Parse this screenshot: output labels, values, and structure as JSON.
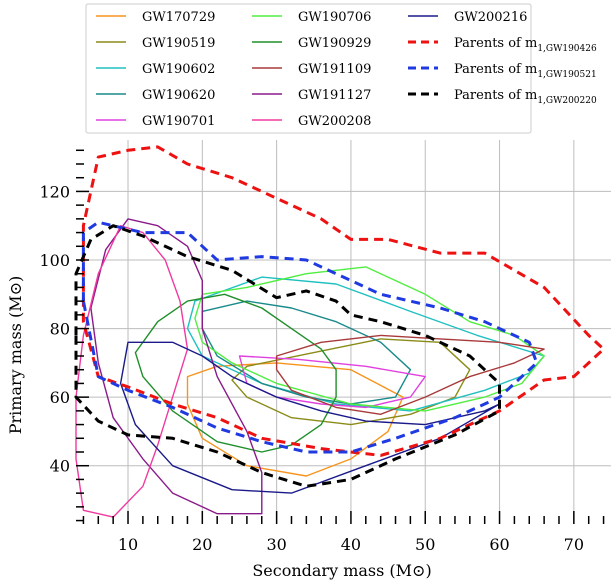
{
  "chart_data": {
    "type": "contour",
    "title": "",
    "xlabel": "Secondary mass (M⊙)",
    "ylabel": "Primary mass (M⊙)",
    "xlim": [
      3,
      75
    ],
    "ylim": [
      23,
      135
    ],
    "xticks": [
      10,
      20,
      30,
      40,
      50,
      60,
      70
    ],
    "yticks": [
      40,
      60,
      80,
      100,
      120
    ],
    "x_minor_step": 2,
    "y_minor_step": 4,
    "grid": true,
    "legend": {
      "placement": "top",
      "columns": 3,
      "entries": [
        {
          "name": "GW170729",
          "color": "#f7941d",
          "style": "solid"
        },
        {
          "name": "GW190519",
          "color": "#8b8b1a",
          "style": "solid"
        },
        {
          "name": "GW190602",
          "color": "#20c0c0",
          "style": "solid"
        },
        {
          "name": "GW190620",
          "color": "#1a8a8a",
          "style": "solid"
        },
        {
          "name": "GW190701",
          "color": "#e040e0",
          "style": "solid"
        },
        {
          "name": "GW190706",
          "color": "#50ee40",
          "style": "solid"
        },
        {
          "name": "GW190929",
          "color": "#1f8f2a",
          "style": "solid"
        },
        {
          "name": "GW191109",
          "color": "#a83a3a",
          "style": "solid"
        },
        {
          "name": "GW191127",
          "color": "#8a1a8a",
          "style": "solid"
        },
        {
          "name": "GW200208",
          "color": "#f03aa0",
          "style": "solid"
        },
        {
          "name": "GW200216",
          "color": "#1a1a8a",
          "style": "solid"
        },
        {
          "name": "Parents of m",
          "sub": "1,GW190426",
          "color": "#ee1111",
          "style": "dashed"
        },
        {
          "name": "Parents of m",
          "sub": "1,GW190521",
          "color": "#1f3ae0",
          "style": "dashed"
        },
        {
          "name": "Parents of m",
          "sub": "1,GW200220",
          "color": "#000000",
          "style": "dashed"
        }
      ]
    },
    "series": [
      {
        "name": "GW170729",
        "contour": [
          [
            22,
            69
          ],
          [
            30,
            70
          ],
          [
            40,
            68
          ],
          [
            47,
            60
          ],
          [
            45,
            50
          ],
          [
            40,
            42
          ],
          [
            34,
            37
          ],
          [
            26,
            40
          ],
          [
            20,
            48
          ],
          [
            18,
            58
          ],
          [
            18,
            66
          ],
          [
            22,
            69
          ]
        ]
      },
      {
        "name": "GW190519",
        "contour": [
          [
            26,
            69
          ],
          [
            35,
            73
          ],
          [
            44,
            77
          ],
          [
            52,
            76
          ],
          [
            56,
            68
          ],
          [
            54,
            60
          ],
          [
            48,
            55
          ],
          [
            40,
            52
          ],
          [
            32,
            54
          ],
          [
            26,
            60
          ],
          [
            24,
            65
          ],
          [
            26,
            69
          ]
        ]
      },
      {
        "name": "GW190602",
        "contour": [
          [
            19,
            88
          ],
          [
            28,
            95
          ],
          [
            38,
            93
          ],
          [
            48,
            85
          ],
          [
            57,
            78
          ],
          [
            66,
            72
          ],
          [
            64,
            67
          ],
          [
            58,
            62
          ],
          [
            48,
            56
          ],
          [
            38,
            58
          ],
          [
            28,
            64
          ],
          [
            20,
            72
          ],
          [
            18,
            80
          ],
          [
            19,
            88
          ]
        ]
      },
      {
        "name": "GW190620",
        "contour": [
          [
            20,
            85
          ],
          [
            26,
            88
          ],
          [
            32,
            86
          ],
          [
            38,
            82
          ],
          [
            44,
            76
          ],
          [
            48,
            68
          ],
          [
            46,
            60
          ],
          [
            40,
            58
          ],
          [
            34,
            60
          ],
          [
            28,
            64
          ],
          [
            22,
            72
          ],
          [
            20,
            80
          ],
          [
            20,
            85
          ]
        ]
      },
      {
        "name": "GW190701",
        "contour": [
          [
            25,
            72
          ],
          [
            33,
            71
          ],
          [
            42,
            69
          ],
          [
            50,
            66
          ],
          [
            48,
            60
          ],
          [
            42,
            57
          ],
          [
            36,
            58
          ],
          [
            30,
            60
          ],
          [
            26,
            64
          ],
          [
            25,
            72
          ]
        ]
      },
      {
        "name": "GW190706",
        "contour": [
          [
            20,
            90
          ],
          [
            26,
            92
          ],
          [
            34,
            96
          ],
          [
            42,
            98
          ],
          [
            50,
            90
          ],
          [
            56,
            82
          ],
          [
            62,
            78
          ],
          [
            66,
            72
          ],
          [
            63,
            64
          ],
          [
            58,
            60
          ],
          [
            50,
            56
          ],
          [
            40,
            58
          ],
          [
            30,
            64
          ],
          [
            24,
            70
          ],
          [
            20,
            76
          ],
          [
            19,
            83
          ],
          [
            20,
            90
          ]
        ]
      },
      {
        "name": "GW190929",
        "contour": [
          [
            11,
            73
          ],
          [
            14,
            82
          ],
          [
            18,
            88
          ],
          [
            23,
            90
          ],
          [
            28,
            86
          ],
          [
            32,
            80
          ],
          [
            36,
            74
          ],
          [
            38,
            68
          ],
          [
            38,
            60
          ],
          [
            36,
            52
          ],
          [
            32,
            46
          ],
          [
            28,
            44
          ],
          [
            22,
            47
          ],
          [
            16,
            56
          ],
          [
            12,
            66
          ],
          [
            11,
            73
          ]
        ]
      },
      {
        "name": "GW191109",
        "contour": [
          [
            30,
            72
          ],
          [
            36,
            76
          ],
          [
            44,
            78
          ],
          [
            52,
            77
          ],
          [
            60,
            76
          ],
          [
            66,
            74
          ],
          [
            62,
            70
          ],
          [
            56,
            66
          ],
          [
            50,
            60
          ],
          [
            44,
            55
          ],
          [
            38,
            57
          ],
          [
            32,
            62
          ],
          [
            30,
            68
          ],
          [
            30,
            72
          ]
        ]
      },
      {
        "name": "GW191127",
        "contour": [
          [
            7,
            103
          ],
          [
            10,
            112
          ],
          [
            14,
            110
          ],
          [
            18,
            104
          ],
          [
            20,
            94
          ],
          [
            20,
            80
          ],
          [
            22,
            66
          ],
          [
            26,
            50
          ],
          [
            28,
            38
          ],
          [
            28,
            26
          ],
          [
            22,
            26
          ],
          [
            16,
            32
          ],
          [
            12,
            42
          ],
          [
            8,
            54
          ],
          [
            6,
            70
          ],
          [
            5,
            86
          ],
          [
            7,
            103
          ]
        ]
      },
      {
        "name": "GW200208",
        "contour": [
          [
            9,
            110
          ],
          [
            12,
            108
          ],
          [
            15,
            100
          ],
          [
            17,
            88
          ],
          [
            18,
            74
          ],
          [
            16,
            60
          ],
          [
            14,
            46
          ],
          [
            12,
            34
          ],
          [
            8,
            25
          ],
          [
            4,
            27
          ],
          [
            3,
            42
          ],
          [
            3,
            60
          ],
          [
            4,
            78
          ],
          [
            6,
            96
          ],
          [
            9,
            110
          ]
        ]
      },
      {
        "name": "GW200216",
        "contour": [
          [
            10,
            76
          ],
          [
            16,
            76
          ],
          [
            20,
            72
          ],
          [
            24,
            66
          ],
          [
            30,
            60
          ],
          [
            36,
            56
          ],
          [
            42,
            53
          ],
          [
            50,
            52
          ],
          [
            58,
            56
          ],
          [
            60,
            58
          ],
          [
            52,
            48
          ],
          [
            42,
            40
          ],
          [
            32,
            32
          ],
          [
            24,
            33
          ],
          [
            16,
            40
          ],
          [
            11,
            52
          ],
          [
            9,
            64
          ],
          [
            10,
            76
          ]
        ]
      },
      {
        "name": "Parents of m 1,GW190426",
        "contour": [
          [
            4,
            82
          ],
          [
            4,
            110
          ],
          [
            6,
            130
          ],
          [
            10,
            132
          ],
          [
            14,
            133
          ],
          [
            18,
            128
          ],
          [
            24,
            124
          ],
          [
            30,
            118
          ],
          [
            36,
            112
          ],
          [
            40,
            106
          ],
          [
            45,
            106
          ],
          [
            52,
            102
          ],
          [
            58,
            102
          ],
          [
            66,
            92
          ],
          [
            72,
            78
          ],
          [
            74,
            74
          ],
          [
            70,
            66
          ],
          [
            66,
            65
          ],
          [
            60,
            56
          ],
          [
            52,
            48
          ],
          [
            44,
            43
          ],
          [
            36,
            45
          ],
          [
            28,
            48
          ],
          [
            22,
            54
          ],
          [
            16,
            58
          ],
          [
            10,
            63
          ],
          [
            6,
            66
          ],
          [
            4,
            82
          ]
        ]
      },
      {
        "name": "Parents of m 1,GW190521",
        "contour": [
          [
            4,
            88
          ],
          [
            4,
            108
          ],
          [
            6,
            111
          ],
          [
            12,
            108
          ],
          [
            18,
            108
          ],
          [
            22,
            100
          ],
          [
            28,
            101
          ],
          [
            34,
            100
          ],
          [
            38,
            96
          ],
          [
            44,
            90
          ],
          [
            52,
            86
          ],
          [
            58,
            82
          ],
          [
            64,
            76
          ],
          [
            65,
            70
          ],
          [
            60,
            60
          ],
          [
            54,
            54
          ],
          [
            46,
            48
          ],
          [
            40,
            44
          ],
          [
            34,
            44
          ],
          [
            28,
            47
          ],
          [
            22,
            51
          ],
          [
            16,
            57
          ],
          [
            10,
            62
          ],
          [
            6,
            66
          ],
          [
            4,
            88
          ]
        ]
      },
      {
        "name": "Parents of m 1,GW200220",
        "contour": [
          [
            3,
            78
          ],
          [
            3,
            96
          ],
          [
            5,
            106
          ],
          [
            8,
            110
          ],
          [
            12,
            107
          ],
          [
            18,
            101
          ],
          [
            24,
            97
          ],
          [
            30,
            89
          ],
          [
            34,
            91
          ],
          [
            38,
            88
          ],
          [
            40,
            84
          ],
          [
            44,
            82
          ],
          [
            50,
            78
          ],
          [
            56,
            72
          ],
          [
            60,
            64
          ],
          [
            60,
            56
          ],
          [
            54,
            49
          ],
          [
            46,
            42
          ],
          [
            40,
            36
          ],
          [
            34,
            34
          ],
          [
            28,
            38
          ],
          [
            22,
            44
          ],
          [
            16,
            48
          ],
          [
            10,
            49
          ],
          [
            6,
            53
          ],
          [
            3,
            60
          ],
          [
            3,
            78
          ]
        ]
      }
    ]
  }
}
